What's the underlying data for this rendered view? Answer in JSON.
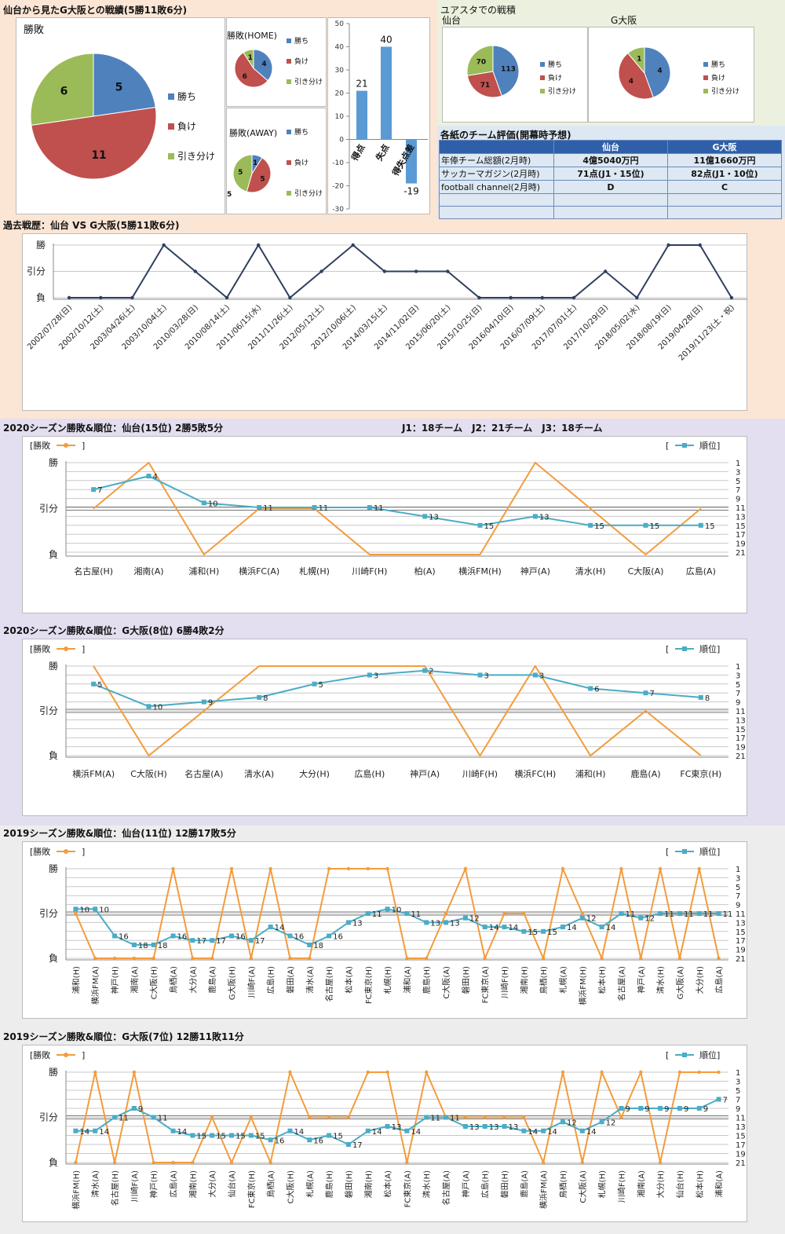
{
  "sections": {
    "top_left_title": "仙台から見たG大阪との戦績(5勝11敗6分)",
    "yuasta_title": "ユアスタでの戦積",
    "eval_title": "各紙のチーム評価(開幕時予想)",
    "history_title": "過去戦歴：仙台 VS G大阪(5勝11敗6分)",
    "s2020_sendai_title": "2020シーズン勝敗&順位：仙台(15位) 2勝5敗5分",
    "s2020_teams": "J1：18チーム　J2：21チーム　J3：18チーム",
    "s2020_gosaka_title": "2020シーズン勝敗&順位：G大阪(8位) 6勝4敗2分",
    "s2019_sendai_title": "2019シーズン勝敗&順位：仙台(11位) 12勝17敗5分",
    "s2019_gosaka_title": "2019シーズン勝敗&順位：G大阪(7位) 12勝11敗11分"
  },
  "legend": {
    "win": "勝ち",
    "lose": "負け",
    "draw": "引き分け",
    "shohai": "勝敗",
    "rank": "順位",
    "bracket_open": "[",
    "bracket_close": "]"
  },
  "yaxis": {
    "win": "勝",
    "draw": "引分",
    "lose": "負"
  },
  "colors": {
    "win": "#4f81bd",
    "lose": "#c0504d",
    "draw": "#9bbb59",
    "result_line": "#f39c3c",
    "rank_line": "#4bacc6",
    "history_line": "#2e3f5f"
  },
  "chart_data": [
    {
      "type": "pie",
      "title": "勝敗",
      "labels": [
        "勝ち",
        "負け",
        "引き分け"
      ],
      "values": [
        5,
        11,
        6
      ]
    },
    {
      "type": "pie",
      "title": "勝敗(HOME)",
      "labels": [
        "勝ち",
        "負け",
        "引き分け"
      ],
      "values": [
        4,
        6,
        1
      ]
    },
    {
      "type": "pie",
      "title": "勝敗(AWAY)",
      "labels": [
        "勝ち",
        "負け",
        "引き分け"
      ],
      "values": [
        1,
        5,
        5
      ]
    },
    {
      "type": "bar",
      "categories": [
        "得点",
        "失点",
        "得失点差"
      ],
      "values": [
        21,
        40,
        -19
      ],
      "ylim": [
        -30,
        50
      ]
    },
    {
      "type": "pie",
      "title": "仙台",
      "labels": [
        "勝ち",
        "負け",
        "引き分け"
      ],
      "values": [
        113,
        71,
        70
      ]
    },
    {
      "type": "pie",
      "title": "G大阪",
      "labels": [
        "勝ち",
        "負け",
        "引き分け"
      ],
      "values": [
        4,
        4,
        1
      ]
    },
    {
      "type": "table",
      "title": "各紙のチーム評価(開幕時予想)",
      "columns": [
        "",
        "仙台",
        "G大阪"
      ],
      "rows": [
        [
          "年俸チーム総額(2月時)",
          "4億5040万円",
          "11億1660万円"
        ],
        [
          "サッカーマガジン(2月時)",
          "71点(J1・15位)",
          "82点(J1・10位)"
        ],
        [
          "football channel(2月時)",
          "D",
          "C"
        ],
        [
          "",
          "",
          ""
        ],
        [
          "",
          "",
          ""
        ]
      ]
    },
    {
      "type": "line",
      "title": "過去戦歴：仙台 VS G大阪(5勝11敗6分)",
      "x": [
        "2002/07/28(日)",
        "2002/10/12(土)",
        "2003/04/26(土)",
        "2003/10/04(土)",
        "2010/03/28(日)",
        "2010/08/14(土)",
        "2011/06/15(水)",
        "2011/11/26(土)",
        "2012/05/12(土)",
        "2012/10/06(土)",
        "2014/03/15(土)",
        "2014/11/02(日)",
        "2015/06/20(土)",
        "2015/10/25(日)",
        "2016/04/10(日)",
        "2016/07/09(土)",
        "2017/07/01(土)",
        "2017/10/29(日)",
        "2018/05/02(水)",
        "2018/08/19(日)",
        "2019/04/28(日)",
        "2019/11/23(土・祝)"
      ],
      "results": [
        "L",
        "L",
        "L",
        "W",
        "D",
        "L",
        "W",
        "L",
        "D",
        "W",
        "D",
        "D",
        "D",
        "L",
        "L",
        "L",
        "L",
        "D",
        "L",
        "W",
        "W",
        "L"
      ]
    },
    {
      "type": "line",
      "title": "2020シーズン勝敗&順位：仙台(15位) 2勝5敗5分",
      "x": [
        "名古屋(H)",
        "湘南(A)",
        "浦和(H)",
        "横浜FC(A)",
        "札幌(H)",
        "川崎F(H)",
        "柏(A)",
        "横浜FM(H)",
        "神戸(A)",
        "清水(H)",
        "C大阪(A)",
        "広島(A)"
      ],
      "results": [
        "D",
        "W",
        "L",
        "D",
        "D",
        "L",
        "L",
        "L",
        "W",
        "D",
        "L",
        "D"
      ],
      "ranks": [
        7,
        4,
        10,
        11,
        11,
        11,
        13,
        15,
        13,
        15,
        15,
        15
      ]
    },
    {
      "type": "line",
      "title": "2020シーズン勝敗&順位：G大阪(8位) 6勝4敗2分",
      "x": [
        "横浜FM(A)",
        "C大阪(H)",
        "名古屋(A)",
        "清水(A)",
        "大分(H)",
        "広島(H)",
        "神戸(A)",
        "川崎F(H)",
        "横浜FC(H)",
        "浦和(H)",
        "鹿島(A)",
        "FC東京(H)"
      ],
      "results": [
        "W",
        "L",
        "D",
        "W",
        "W",
        "W",
        "W",
        "L",
        "W",
        "L",
        "D",
        "L"
      ],
      "ranks": [
        5,
        10,
        9,
        8,
        5,
        3,
        2,
        3,
        3,
        6,
        7,
        8
      ]
    },
    {
      "type": "line",
      "title": "2019シーズン勝敗&順位：仙台(11位) 12勝17敗5分",
      "x": [
        "浦和(H)",
        "横浜FM(A)",
        "神戸(H)",
        "湘南(A)",
        "C大阪(H)",
        "鳥栖(A)",
        "大分(A)",
        "鹿島(A)",
        "G大阪(H)",
        "川崎F(A)",
        "広島(H)",
        "磐田(A)",
        "清水(A)",
        "名古屋(H)",
        "松本(A)",
        "FC東京(H)",
        "札幌(H)",
        "浦和(A)",
        "鹿島(H)",
        "C大阪(A)",
        "磐田(H)",
        "FC東京(A)",
        "川崎F(H)",
        "湘南(H)",
        "鳥栖(H)",
        "札幌(A)",
        "横浜FM(H)",
        "松本(H)",
        "名古屋(A)",
        "神戸(A)",
        "清水(H)",
        "G大阪(A)",
        "大分(H)",
        "広島(A)"
      ],
      "results": [
        "D",
        "L",
        "L",
        "L",
        "L",
        "W",
        "L",
        "L",
        "W",
        "L",
        "W",
        "L",
        "L",
        "W",
        "W",
        "W",
        "W",
        "L",
        "L",
        "D",
        "W",
        "L",
        "D",
        "D",
        "L",
        "W",
        "D",
        "L",
        "W",
        "L",
        "W",
        "L",
        "W",
        "L"
      ],
      "ranks": [
        10,
        10,
        16,
        18,
        18,
        16,
        17,
        17,
        16,
        17,
        14,
        16,
        18,
        16,
        13,
        11,
        10,
        11,
        13,
        13,
        12,
        14,
        14,
        15,
        15,
        14,
        12,
        14,
        11,
        12,
        11,
        11,
        11,
        11
      ]
    },
    {
      "type": "line",
      "title": "2019シーズン勝敗&順位：G大阪(7位) 12勝11敗11分",
      "x": [
        "横浜FM(H)",
        "清水(A)",
        "名古屋(H)",
        "川崎F(A)",
        "神戸(H)",
        "広島(A)",
        "湘南(H)",
        "大分(A)",
        "仙台(A)",
        "FC東京(H)",
        "鳥栖(A)",
        "C大阪(H)",
        "札幌(A)",
        "鹿島(H)",
        "磐田(H)",
        "湘南(H)",
        "松本(A)",
        "FC東京(A)",
        "清水(H)",
        "名古屋(A)",
        "神戸(A)",
        "広島(H)",
        "磐田(H)",
        "鹿島(A)",
        "横浜FM(A)",
        "鳥栖(H)",
        "C大阪(A)",
        "札幌(H)",
        "川崎F(H)",
        "湘南(A)",
        "大分(H)",
        "仙台(H)",
        "松本(H)",
        "浦和(A)"
      ],
      "results": [
        "L",
        "W",
        "L",
        "W",
        "L",
        "L",
        "L",
        "D",
        "L",
        "D",
        "L",
        "W",
        "D",
        "D",
        "D",
        "W",
        "W",
        "L",
        "W",
        "D",
        "D",
        "D",
        "D",
        "D",
        "L",
        "W",
        "L",
        "W",
        "D",
        "W",
        "L",
        "W",
        "W",
        "W"
      ],
      "ranks": [
        14,
        14,
        11,
        9,
        11,
        14,
        15,
        15,
        15,
        15,
        16,
        14,
        16,
        15,
        17,
        14,
        13,
        14,
        11,
        11,
        13,
        13,
        13,
        14,
        14,
        12,
        14,
        12,
        9,
        9,
        9,
        9,
        9,
        7
      ]
    }
  ]
}
